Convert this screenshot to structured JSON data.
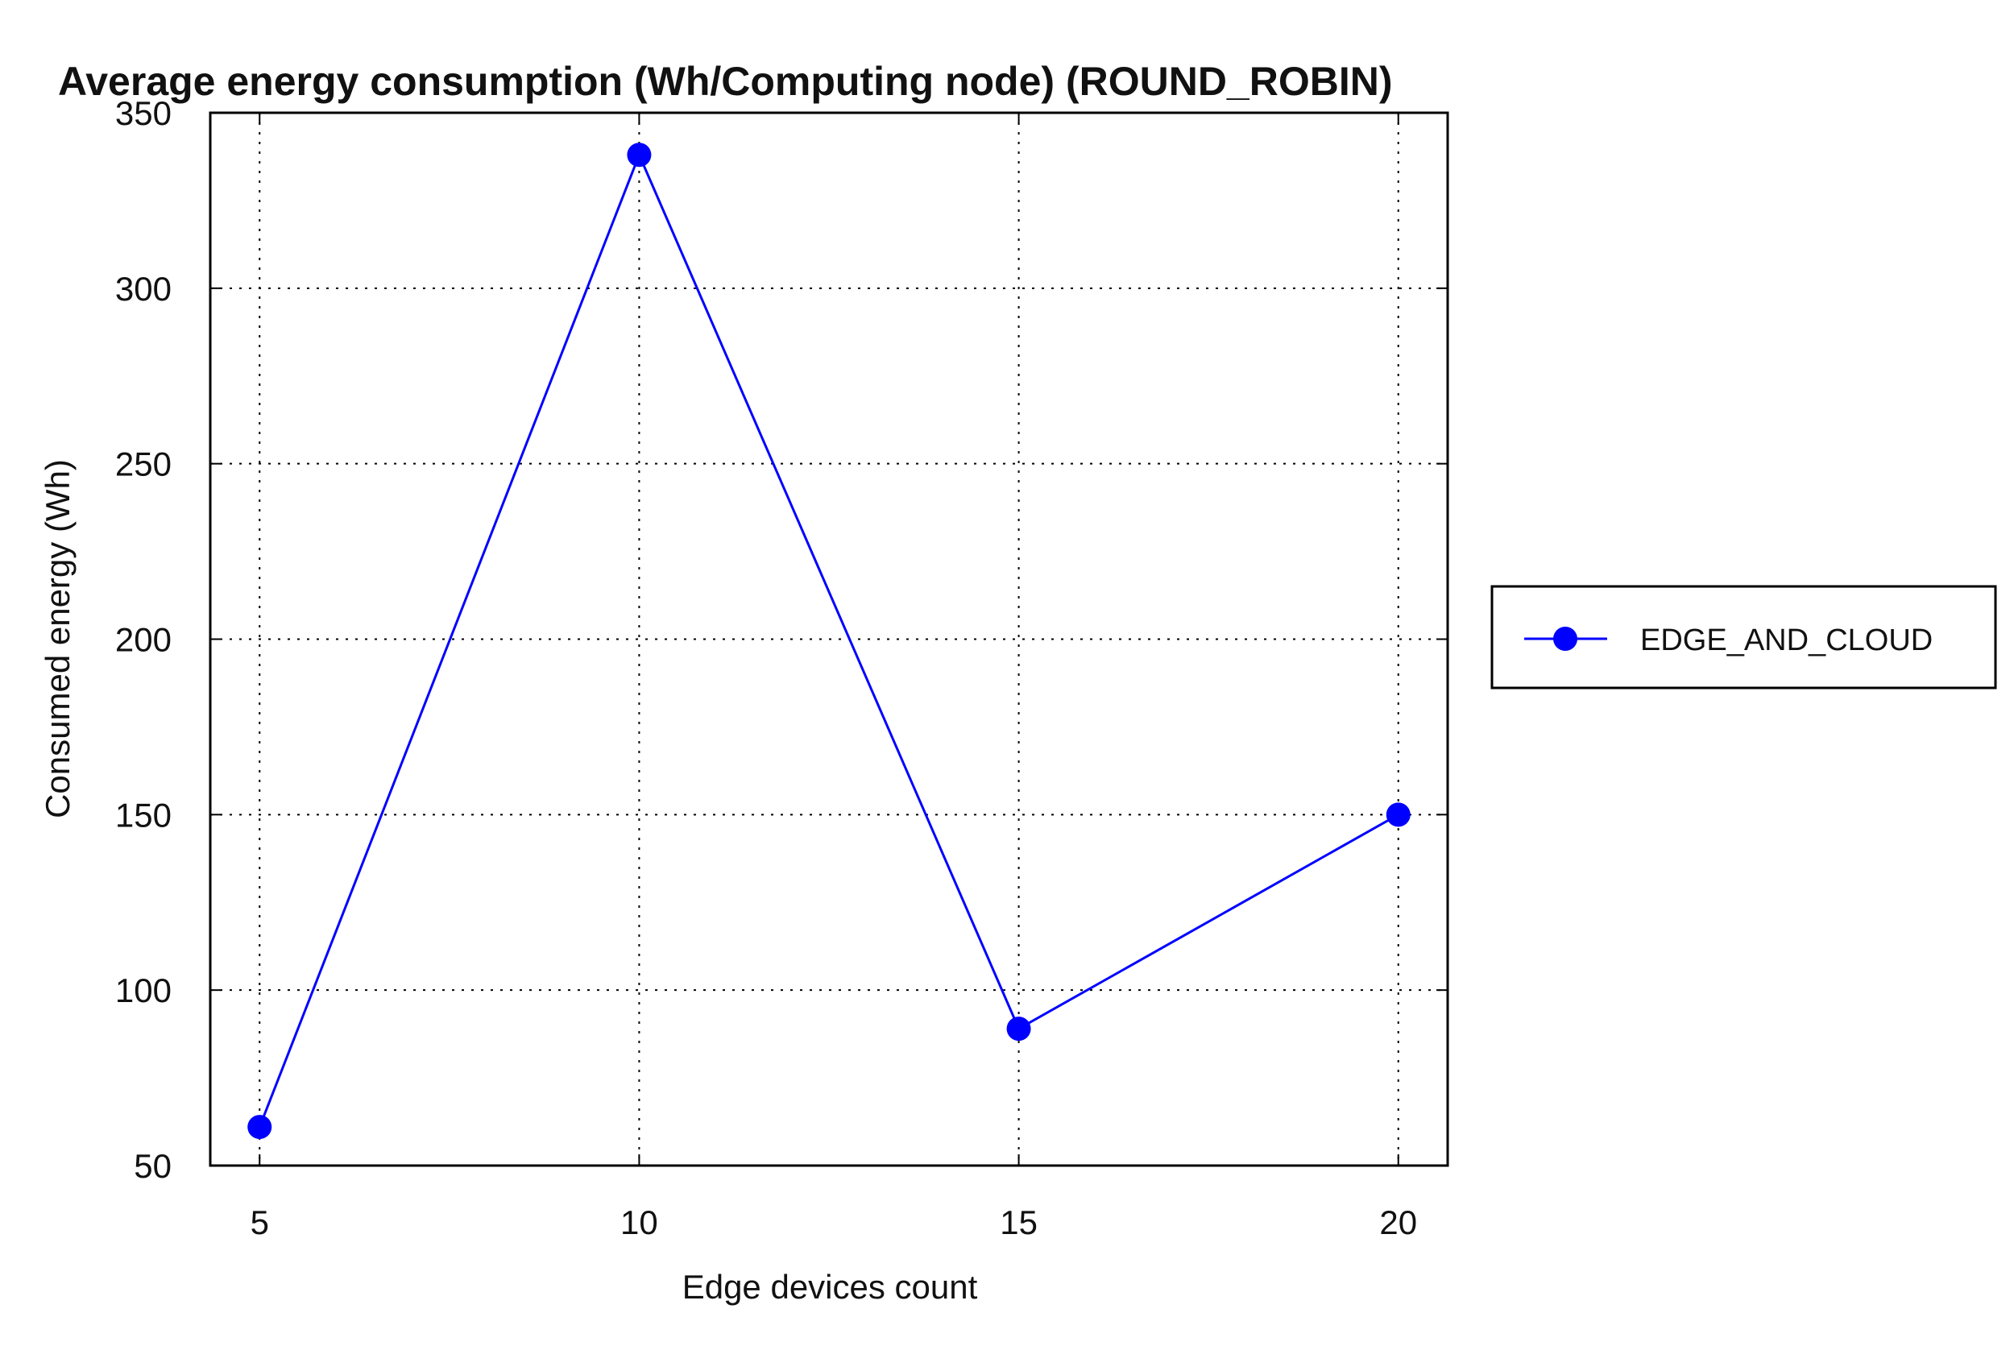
{
  "chart_data": {
    "type": "line",
    "title": "Average energy consumption (Wh/Computing node) (ROUND_ROBIN)",
    "xlabel": "Edge devices count",
    "ylabel": "Consumed energy (Wh)",
    "x": [
      5,
      10,
      15,
      20
    ],
    "xticks": [
      5,
      10,
      15,
      20
    ],
    "xlim": [
      4.35,
      20.65
    ],
    "yticks": [
      50,
      100,
      150,
      200,
      250,
      300,
      350
    ],
    "ylim": [
      50,
      350
    ],
    "grid": true,
    "legend_position": "outside-right",
    "series": [
      {
        "name": "EDGE_AND_CLOUD",
        "values": [
          61,
          338,
          89,
          150
        ],
        "color": "#0000ff",
        "marker": "circle"
      }
    ]
  }
}
